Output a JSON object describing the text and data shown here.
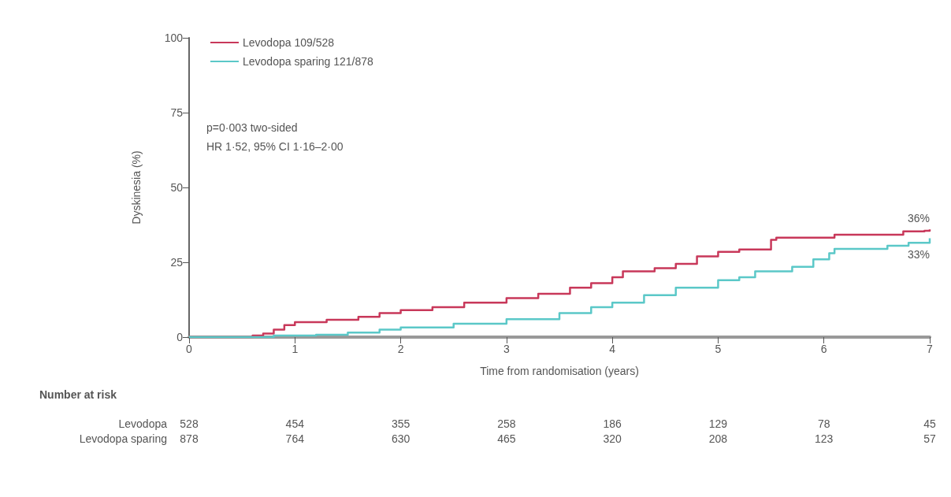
{
  "chart_data": {
    "type": "step",
    "xlabel": "Time from randomisation (years)",
    "ylabel": "Dyskinesia (%)",
    "xlim": [
      0,
      7
    ],
    "xticks": [
      0,
      1,
      2,
      3,
      4,
      5,
      6,
      7
    ],
    "ylim": [
      0,
      100
    ],
    "yticks": [
      0,
      25,
      50,
      75,
      100
    ],
    "grid": false,
    "legend": "top left",
    "marker": "none",
    "series": [
      {
        "name": "Levodopa 109/528",
        "color": "#c8385a",
        "x": [
          0,
          0.5,
          0.6,
          0.7,
          0.8,
          0.9,
          1.0,
          1.3,
          1.6,
          1.8,
          2.0,
          2.3,
          2.6,
          3.0,
          3.3,
          3.6,
          3.8,
          4.0,
          4.1,
          4.4,
          4.6,
          4.8,
          5.0,
          5.2,
          5.45,
          5.5,
          5.55,
          6.05,
          6.1,
          6.7,
          6.75,
          6.95,
          7.0
        ],
        "values": [
          0,
          0,
          0.5,
          1.2,
          2.5,
          4,
          5,
          5.8,
          6.8,
          8,
          9,
          10,
          11.5,
          13,
          14.5,
          16.5,
          18,
          20,
          22,
          23,
          24.5,
          27,
          28.5,
          29.3,
          29.3,
          32.5,
          33.2,
          33.2,
          34.2,
          34.2,
          35.3,
          35.5,
          36
        ]
      },
      {
        "name": "Levodopa sparing 121/878",
        "color": "#5bc8c8",
        "x": [
          0,
          0.8,
          1.2,
          1.5,
          1.8,
          2.0,
          2.5,
          3.0,
          3.5,
          3.8,
          4.0,
          4.3,
          4.6,
          5.0,
          5.2,
          5.35,
          5.7,
          5.9,
          6.05,
          6.1,
          6.6,
          6.8,
          7.0
        ],
        "values": [
          0,
          0.5,
          0.8,
          1.5,
          2.5,
          3.2,
          4.5,
          6,
          8,
          10,
          11.5,
          14,
          16.5,
          19,
          20,
          22,
          23.5,
          26,
          28,
          29.5,
          30.5,
          31.5,
          33
        ]
      }
    ],
    "annotations": [
      "p=0·003 two-sided",
      "HR 1·52, 95% CI 1·16–2·00",
      {
        "text": "36%",
        "x": 7,
        "y": 36
      },
      {
        "text": "33%",
        "x": 7,
        "y": 33
      },
      "Number at risk",
      "Levodopa",
      "528",
      "454",
      "355",
      "258",
      "186",
      "129",
      "78",
      "45",
      "Levodopa sparing",
      "878",
      "764",
      "630",
      "465",
      "320",
      "208",
      "123",
      "57"
    ]
  }
}
